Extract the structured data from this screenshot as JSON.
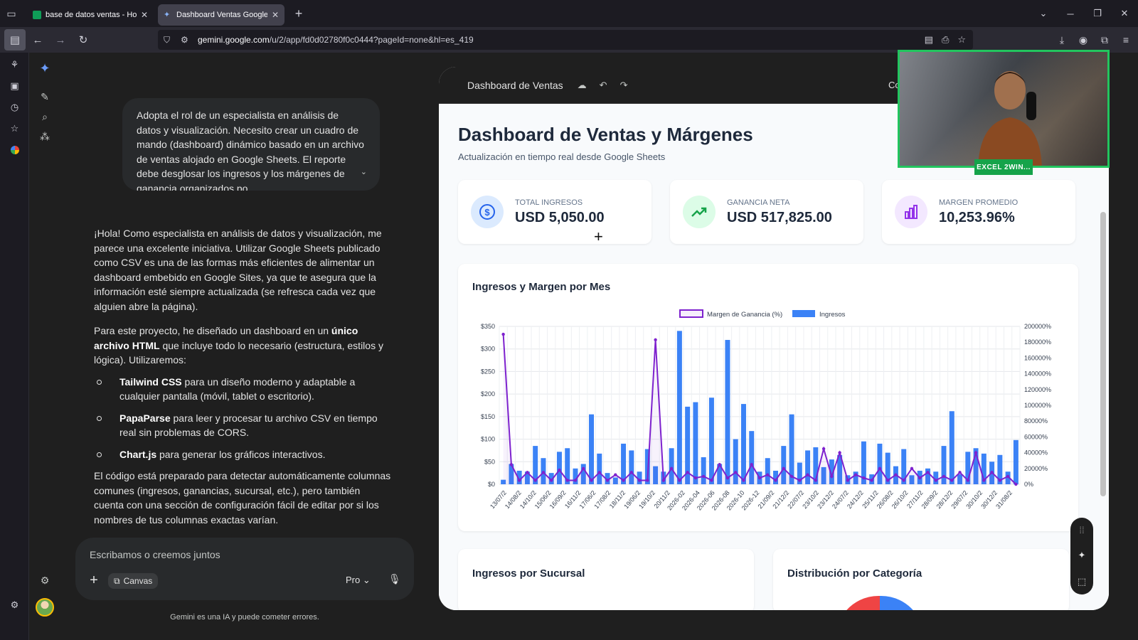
{
  "browser": {
    "tabs": [
      {
        "title": "base de datos ventas - Hojas de",
        "active": false
      },
      {
        "title": "Dashboard Ventas Google Shee",
        "active": true
      }
    ],
    "url_domain": "gemini.google.com",
    "url_path": "/u/2/app/fd0d02780f0c0444?pageId=none&hl=es_419"
  },
  "chat": {
    "prompt": "Adopta el rol de un especialista en análisis de datos y visualización. Necesito crear un cuadro de mando (dashboard) dinámico basado en un archivo de ventas alojado en Google Sheets. El reporte debe desglosar los ingresos y los márgenes de ganancia organizados po",
    "response_p1": "¡Hola! Como especialista en análisis de datos y visualización, me parece una excelente iniciativa. Utilizar Google Sheets publicado como CSV es una de las formas más eficientes de alimentar un dashboard embebido en Google Sites, ya que te asegura que la información esté siempre actualizada (se refresca cada vez que alguien abre la página).",
    "response_p2_a": "Para este proyecto, he diseñado un dashboard en un ",
    "response_p2_b": "único archivo HTML",
    "response_p2_c": " que incluye todo lo necesario (estructura, estilos y lógica). Utilizaremos:",
    "bullets": [
      {
        "bold": "Tailwind CSS",
        "rest": " para un diseño moderno y adaptable a cualquier pantalla (móvil, tablet o escritorio)."
      },
      {
        "bold": "PapaParse",
        "rest": " para leer y procesar tu archivo CSV en tiempo real sin problemas de CORS."
      },
      {
        "bold": "Chart.js",
        "rest": " para generar los gráficos interactivos."
      }
    ],
    "response_p3": "El código está preparado para detectar automáticamente columnas comunes (ingresos, ganancias, sucursal, etc.), pero también cuenta con una sección de configuración fácil de editar por si los nombres de tus columnas exactas varían.",
    "composer_placeholder": "Escribamos o creemos juntos",
    "canvas_chip": "Canvas",
    "model": "Pro",
    "disclaimer": "Gemini es una IA y puede cometer errores."
  },
  "canvas": {
    "header_title": "Dashboard de Ventas",
    "share_partial": "Co",
    "title": "Dashboard de Ventas y Márgenes",
    "subtitle": "Actualización en tiempo real desde Google Sheets",
    "kpis": [
      {
        "label": "TOTAL INGRESOS",
        "value": "USD 5,050.00",
        "icon": "dollar-icon",
        "bg": "#dbeafe",
        "color": "#2563eb"
      },
      {
        "label": "GANANCIA NETA",
        "value": "USD 517,825.00",
        "icon": "trending-up-icon",
        "bg": "#dcfce7",
        "color": "#16a34a"
      },
      {
        "label": "MARGEN PROMEDIO",
        "value": "10,253.96%",
        "icon": "bar-chart-icon",
        "bg": "#f3e8ff",
        "color": "#9333ea"
      }
    ],
    "chart_title": "Ingresos y Margen por Mes",
    "card2_title": "Ingresos por Sucursal",
    "card3_title": "Distribución por Categoría"
  },
  "webcam": {
    "badge": "EXCEL 2WIN..."
  },
  "colors": {
    "bar": "#3b82f6",
    "line": "#7e22ce",
    "green": "#22c55e"
  },
  "chart_data": {
    "type": "bar",
    "legend": [
      {
        "name": "Margen de Ganancia (%)",
        "type": "line"
      },
      {
        "name": "Ingresos",
        "type": "bar"
      }
    ],
    "left_ticks": [
      "$0",
      "$50",
      "$100",
      "$150",
      "$200",
      "$250",
      "$300",
      "$350"
    ],
    "right_ticks": [
      "0%",
      "20000%",
      "40000%",
      "60000%",
      "80000%",
      "100000%",
      "120000%",
      "140000%",
      "160000%",
      "180000%",
      "200000%"
    ],
    "ylim": [
      0,
      350
    ],
    "y2lim": [
      0,
      200000
    ],
    "x_labels": [
      "13/07/2",
      "14/08/2",
      "14/10/2",
      "15/06/2",
      "16/09/2",
      "16/11/2",
      "17/06/2",
      "17/08/2",
      "18/11/2",
      "19/06/2",
      "19/10/2",
      "20/11/2",
      "2026-02",
      "2026-04",
      "2026-06",
      "2026-08",
      "2026-10",
      "2026-12",
      "21/09/2",
      "21/12/2",
      "22/07/2",
      "23/10/2",
      "23/12/2",
      "24/07/2",
      "24/12/2",
      "25/11/2",
      "26/08/2",
      "26/10/2",
      "27/11/2",
      "28/09/2",
      "28/12/2",
      "29/07/2",
      "30/10/2",
      "30/12/2",
      "31/08/2"
    ],
    "ingresos": [
      10,
      45,
      30,
      28,
      85,
      58,
      25,
      72,
      80,
      35,
      45,
      155,
      68,
      25,
      15,
      90,
      75,
      28,
      78,
      40,
      28,
      80,
      340,
      172,
      182,
      60,
      192,
      45,
      320,
      100,
      178,
      118,
      28,
      58,
      30,
      85,
      155,
      48,
      75,
      82,
      38,
      55,
      65,
      20,
      28,
      95,
      22,
      90,
      70,
      40,
      78,
      20,
      30,
      35,
      28,
      85,
      162,
      22,
      72,
      80,
      68,
      50,
      65,
      28,
      98
    ],
    "margen": [
      190000,
      25000,
      5000,
      15000,
      5000,
      15000,
      5000,
      18000,
      5000,
      5000,
      20000,
      5000,
      15000,
      5000,
      12000,
      5000,
      15000,
      5000,
      5000,
      183000,
      5000,
      20000,
      5000,
      15000,
      8000,
      10000,
      5000,
      25000,
      8000,
      15000,
      5000,
      25000,
      8000,
      12000,
      5000,
      20000,
      10000,
      5000,
      12000,
      5000,
      45000,
      10000,
      40000,
      5000,
      12000,
      8000,
      5000,
      20000,
      5000,
      12000,
      5000,
      20000,
      8000,
      15000,
      5000,
      10000,
      5000,
      15000,
      5000,
      40000,
      5000,
      15000,
      5000,
      10000,
      0
    ]
  }
}
